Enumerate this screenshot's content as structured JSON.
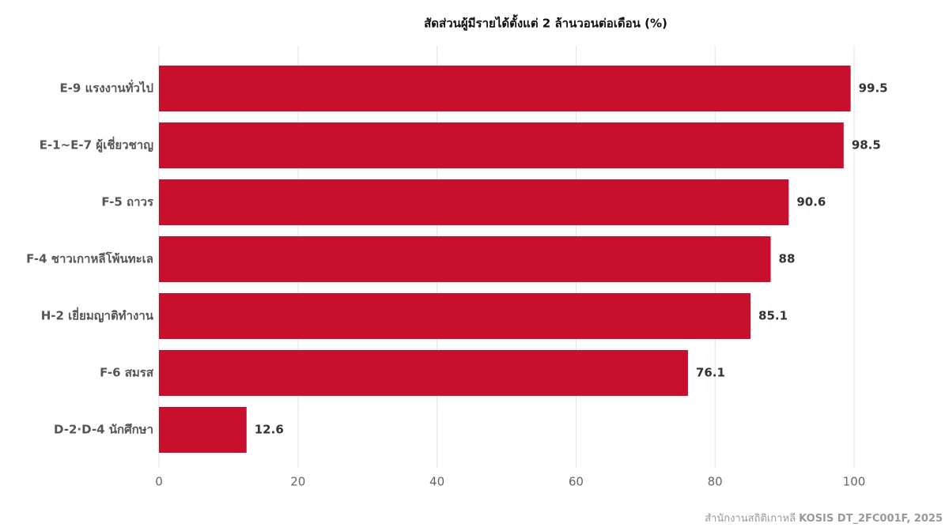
{
  "chart_data": {
    "type": "barh",
    "title": "สัดส่วนผู้มีรายได้ตั้งแต่ 2 ล้านวอนต่อเดือน (%)",
    "categories": [
      "E-9 แรงงานทั่วไป",
      "E-1~E-7 ผู้เชี่ยวชาญ",
      "F-5 ถาวร",
      "F-4 ชาวเกาหลีโพ้นทะเล",
      "H-2 เยี่ยมญาติทำงาน",
      "F-6 สมรส",
      "D-2·D-4 นักศึกษา"
    ],
    "values": [
      99.5,
      98.5,
      90.6,
      88,
      85.1,
      76.1,
      12.6
    ],
    "color": "#c8102e",
    "xlim": [
      0,
      100
    ],
    "xticks": [
      0,
      20,
      40,
      60,
      80,
      100
    ],
    "grid": true,
    "source": [
      "สำนักงานสถิติเกาหลี",
      "KOSIS DT_2FC001F, 2025"
    ]
  }
}
